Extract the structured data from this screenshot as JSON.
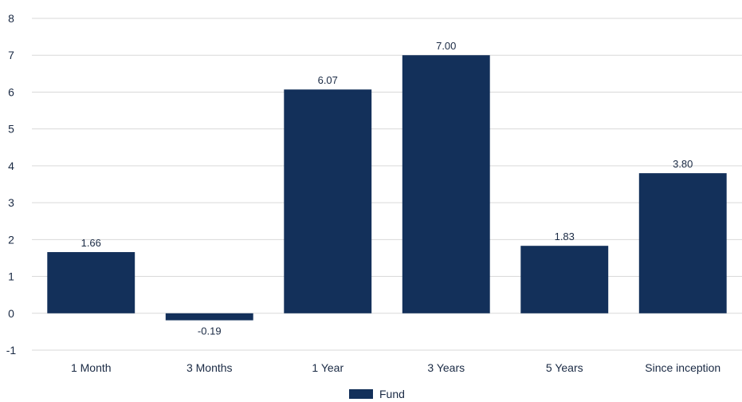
{
  "chart_data": {
    "type": "bar",
    "categories": [
      "1 Month",
      "3 Months",
      "1 Year",
      "3 Years",
      "5 Years",
      "Since inception"
    ],
    "series": [
      {
        "name": "Fund",
        "values": [
          1.66,
          -0.19,
          6.07,
          7.0,
          1.83,
          3.8
        ],
        "color": "#13305a"
      }
    ],
    "data_labels": [
      "1.66",
      "-0.19",
      "6.07",
      "7.00",
      "1.83",
      "3.80"
    ],
    "y_ticks": [
      "-1",
      "0",
      "1",
      "2",
      "3",
      "4",
      "5",
      "6",
      "7",
      "8"
    ],
    "ylim": [
      -1,
      8
    ],
    "grid": true,
    "legend_position": "bottom-center"
  }
}
